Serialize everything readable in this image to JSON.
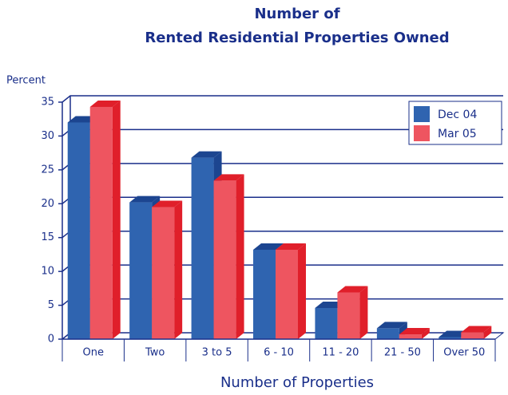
{
  "chart_data": {
    "type": "bar3d",
    "title": [
      "Number of",
      "Rented Residential Properties Owned"
    ],
    "y_label": "Percent",
    "x_label": "Number of Properties",
    "categories": [
      "One",
      "Two",
      "3 to 5",
      "6 - 10",
      "11 - 20",
      "21 - 50",
      "Over 50"
    ],
    "series": [
      {
        "name": "Dec 04",
        "color": "#2f64b0",
        "side_color": "#1c4590",
        "values": [
          32,
          20.2,
          26.8,
          13.2,
          4.6,
          1.6,
          0.3
        ]
      },
      {
        "name": "Mar 05",
        "color": "#ee5560",
        "side_color": "#e01f2a",
        "values": [
          34.3,
          19.5,
          23.4,
          13.2,
          6.9,
          0.7,
          1.0
        ]
      }
    ],
    "ylim": [
      0,
      35
    ],
    "yticks": [
      0,
      5,
      10,
      15,
      20,
      25,
      30,
      35
    ],
    "grid": true,
    "legend": "top-right"
  }
}
